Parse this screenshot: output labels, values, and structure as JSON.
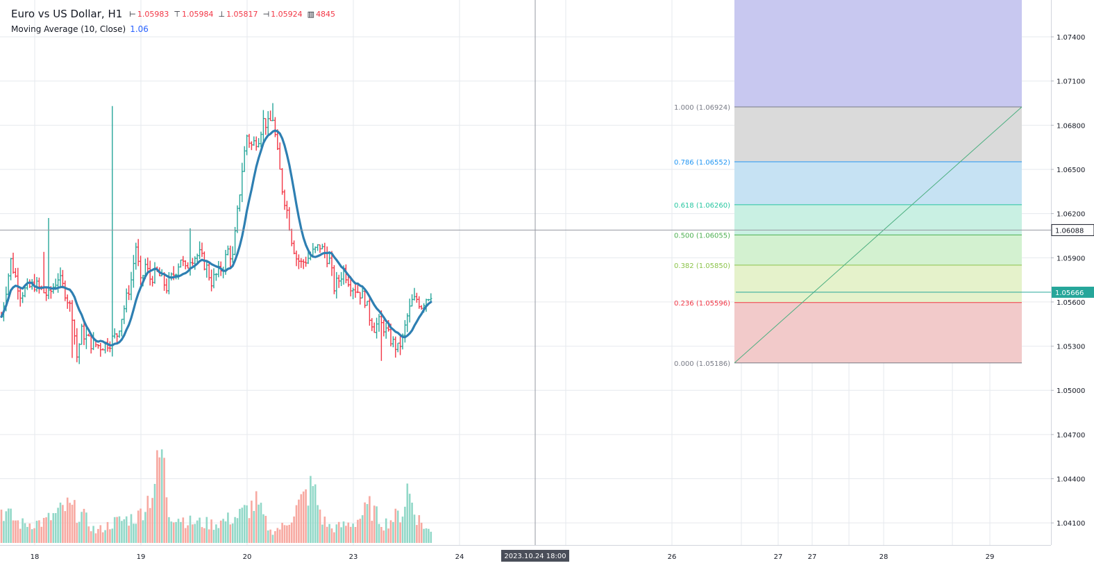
{
  "header": {
    "title": "Euro vs US Dollar, H1",
    "ohlc": [
      {
        "icon": "open-icon",
        "glyph": "⊢",
        "value": "1.05983"
      },
      {
        "icon": "high-icon",
        "glyph": "⊤",
        "value": "1.05984"
      },
      {
        "icon": "low-icon",
        "glyph": "⊥",
        "value": "1.05817"
      },
      {
        "icon": "close-icon",
        "glyph": "⊣",
        "value": "1.05924"
      },
      {
        "icon": "volume-icon",
        "glyph": "▥",
        "value": "4845"
      }
    ],
    "indicator": {
      "label": "Moving Average (10, Close)",
      "value": "1.06"
    }
  },
  "colors": {
    "up": "#26a69a",
    "down": "#f23645",
    "ma": "#2e7fb2",
    "up_volume": "#92d8c8",
    "down_volume": "#f7a9a1",
    "grid": "#e6e9ee",
    "crosshair": "#9598a1",
    "price_tag": "#26a69a"
  },
  "chart_data": {
    "type": "candlestick",
    "timeframe": "H1",
    "y_axis": {
      "range": [
        1.0395,
        1.0765
      ],
      "ticks": [
        "1.07400",
        "1.07100",
        "1.06800",
        "1.06500",
        "1.06200",
        "1.05900",
        "1.05600",
        "1.05300",
        "1.05000",
        "1.04700",
        "1.04400",
        "1.04100"
      ]
    },
    "x_axis": {
      "ticks": [
        "18",
        "19",
        "20",
        "23",
        "24",
        "26",
        "27",
        "27",
        "28",
        "29"
      ],
      "crosshair_label": "2023.10.24 18:00"
    },
    "price_path": [
      [
        0,
        1.055
      ],
      [
        4,
        1.0588
      ],
      [
        8,
        1.0566
      ],
      [
        14,
        1.0572
      ],
      [
        20,
        1.0564
      ],
      [
        24,
        1.0577
      ],
      [
        27,
        1.0567
      ],
      [
        30,
        1.0552
      ],
      [
        32,
        1.0523
      ],
      [
        34,
        1.054
      ],
      [
        38,
        1.0532
      ],
      [
        42,
        1.053
      ],
      [
        46,
        1.0533
      ],
      [
        49,
        1.0538
      ],
      [
        52,
        1.0556
      ],
      [
        55,
        1.0575
      ],
      [
        57,
        1.0598
      ],
      [
        59,
        1.0572
      ],
      [
        61,
        1.0585
      ],
      [
        63,
        1.0576
      ],
      [
        66,
        1.058
      ],
      [
        68,
        1.0575
      ],
      [
        70,
        1.057
      ],
      [
        74,
        1.0582
      ],
      [
        76,
        1.059
      ],
      [
        78,
        1.0581
      ],
      [
        80,
        1.059
      ],
      [
        84,
        1.0592
      ],
      [
        87,
        1.0583
      ],
      [
        89,
        1.0574
      ],
      [
        92,
        1.058
      ],
      [
        94,
        1.0585
      ],
      [
        96,
        1.0595
      ],
      [
        98,
        1.059
      ],
      [
        100,
        1.062
      ],
      [
        102,
        1.065
      ],
      [
        104,
        1.0673
      ],
      [
        106,
        1.0666
      ],
      [
        109,
        1.0672
      ],
      [
        111,
        1.0683
      ],
      [
        113,
        1.068
      ],
      [
        115,
        1.0685
      ],
      [
        117,
        1.066
      ],
      [
        119,
        1.0637
      ],
      [
        121,
        1.0622
      ],
      [
        123,
        1.0603
      ],
      [
        125,
        1.059
      ],
      [
        127,
        1.0586
      ],
      [
        130,
        1.059
      ],
      [
        133,
        1.0595
      ],
      [
        135,
        1.0598
      ],
      [
        137,
        1.0593
      ],
      [
        139,
        1.0588
      ],
      [
        141,
        1.057
      ],
      [
        143,
        1.0575
      ],
      [
        145,
        1.0582
      ],
      [
        148,
        1.0572
      ],
      [
        150,
        1.0569
      ],
      [
        152,
        1.0566
      ],
      [
        154,
        1.0562
      ],
      [
        156,
        1.055
      ],
      [
        158,
        1.0543
      ],
      [
        160,
        1.0546
      ],
      [
        162,
        1.0543
      ],
      [
        164,
        1.0537
      ],
      [
        166,
        1.0532
      ],
      [
        168,
        1.0528
      ],
      [
        170,
        1.0535
      ],
      [
        172,
        1.055
      ],
      [
        174,
        1.056
      ],
      [
        176,
        1.0562
      ],
      [
        178,
        1.0558
      ],
      [
        180,
        1.0563
      ],
      [
        182,
        1.0566
      ]
    ],
    "candle_step_px": 3.4,
    "spikes": [
      [
        47,
        1.0693
      ],
      [
        20,
        1.0617
      ],
      [
        18,
        1.0594
      ],
      [
        30,
        1.0522
      ],
      [
        36,
        1.0528
      ],
      [
        80,
        1.061
      ],
      [
        115,
        1.0695
      ],
      [
        161,
        1.052
      ]
    ],
    "volume_path": [
      [
        0,
        0.35
      ],
      [
        8,
        0.2
      ],
      [
        18,
        0.22
      ],
      [
        28,
        0.38
      ],
      [
        34,
        0.3
      ],
      [
        40,
        0.12
      ],
      [
        48,
        0.22
      ],
      [
        58,
        0.28
      ],
      [
        64,
        0.55
      ],
      [
        68,
        0.98
      ],
      [
        71,
        0.32
      ],
      [
        80,
        0.22
      ],
      [
        90,
        0.2
      ],
      [
        100,
        0.28
      ],
      [
        108,
        0.42
      ],
      [
        114,
        0.12
      ],
      [
        120,
        0.18
      ],
      [
        126,
        0.4
      ],
      [
        132,
        0.6
      ],
      [
        136,
        0.25
      ],
      [
        140,
        0.15
      ],
      [
        150,
        0.22
      ],
      [
        156,
        0.38
      ],
      [
        162,
        0.2
      ],
      [
        170,
        0.32
      ],
      [
        172,
        0.58
      ],
      [
        176,
        0.28
      ],
      [
        180,
        0.15
      ],
      [
        184,
        0.08
      ],
      [
        186,
        0.04
      ]
    ],
    "moving_average": {
      "period": 10,
      "source": "Close",
      "value": "1.06"
    },
    "crosshair": {
      "price": "1.06088",
      "time": "2023.10.24 18:00"
    },
    "last_price": "1.05666",
    "fibonacci_retracement": {
      "levels": [
        {
          "ratio": "1.000",
          "price": "1.06924",
          "color": "#787b86",
          "fill": "#dadada"
        },
        {
          "ratio": "0.786",
          "price": "1.06552",
          "color": "#2196f3",
          "fill": "#c6e2f3"
        },
        {
          "ratio": "0.618",
          "price": "1.06260",
          "color": "#26c6a0",
          "fill": "#c9f0e3"
        },
        {
          "ratio": "0.500",
          "price": "1.06055",
          "color": "#4caf50",
          "fill": "#d3f1d0"
        },
        {
          "ratio": "0.382",
          "price": "1.05850",
          "color": "#8bc34a",
          "fill": "#e5f2cb"
        },
        {
          "ratio": "0.236",
          "price": "1.05596",
          "color": "#f23645",
          "fill": "#f2caca"
        },
        {
          "ratio": "0.000",
          "price": "1.05186",
          "color": "#787b86",
          "fill": "#f2caca"
        }
      ],
      "extension_fill": "#c8c8f0"
    }
  }
}
